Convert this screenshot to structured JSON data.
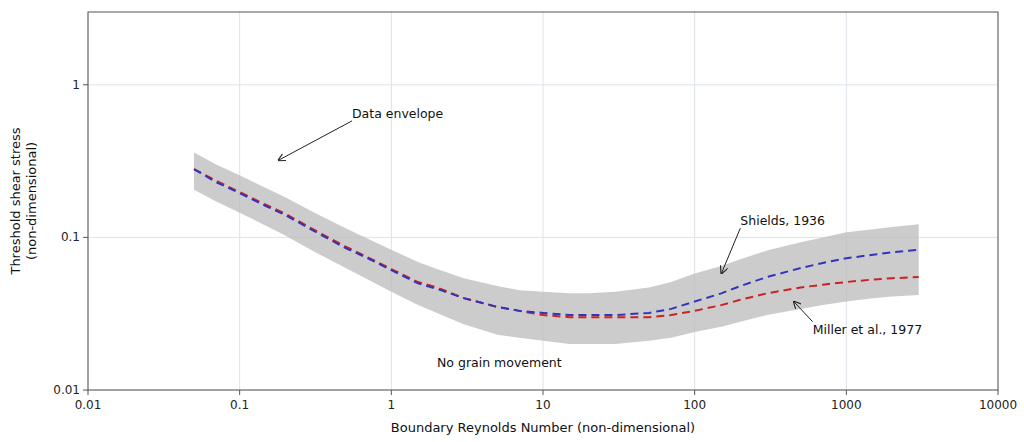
{
  "chart_data": {
    "type": "line",
    "log": true,
    "grid": true,
    "xlabel": "Boundary Reynolds Number (non-dimensional)",
    "ylabel": "Threshold shear stress\n(non-dimensional)",
    "xlim": [
      0.01,
      10000
    ],
    "ylim": [
      0.01,
      3.0
    ],
    "xticks": [
      0.01,
      0.1,
      1,
      10,
      100,
      1000,
      10000
    ],
    "yticks": [
      0.01,
      0.1,
      1
    ],
    "x": [
      0.05,
      0.07,
      0.1,
      0.15,
      0.2,
      0.3,
      0.5,
      0.7,
      1.0,
      1.5,
      2.0,
      3.0,
      5.0,
      7.0,
      10.0,
      15.0,
      20.0,
      30.0,
      50.0,
      70.0,
      100.0,
      150.0,
      200.0,
      300.0,
      500.0,
      700.0,
      1000.0,
      1500.0,
      2000.0,
      3000.0
    ],
    "series": [
      {
        "type": "band",
        "color": "#bbbbbb",
        "upper": [
          0.36,
          0.3,
          0.255,
          0.21,
          0.183,
          0.148,
          0.115,
          0.098,
          0.083,
          0.069,
          0.062,
          0.054,
          0.048,
          0.045,
          0.044,
          0.043,
          0.043,
          0.044,
          0.047,
          0.051,
          0.058,
          0.065,
          0.072,
          0.082,
          0.093,
          0.1,
          0.108,
          0.113,
          0.117,
          0.122
        ],
        "lower": [
          0.205,
          0.172,
          0.145,
          0.119,
          0.103,
          0.082,
          0.063,
          0.053,
          0.044,
          0.036,
          0.032,
          0.027,
          0.023,
          0.022,
          0.021,
          0.02,
          0.02,
          0.02,
          0.021,
          0.022,
          0.024,
          0.026,
          0.028,
          0.031,
          0.034,
          0.036,
          0.038,
          0.04,
          0.041,
          0.042
        ]
      },
      {
        "type": "line",
        "color": "#cc2222",
        "line_style": "dashed",
        "values": [
          0.28,
          0.235,
          0.198,
          0.163,
          0.143,
          0.114,
          0.087,
          0.074,
          0.062,
          0.051,
          0.047,
          0.04,
          0.035,
          0.033,
          0.031,
          0.03,
          0.03,
          0.03,
          0.03,
          0.031,
          0.033,
          0.036,
          0.039,
          0.043,
          0.047,
          0.049,
          0.051,
          0.053,
          0.054,
          0.055
        ]
      },
      {
        "type": "line",
        "color": "#3333bb",
        "line_style": "dashed",
        "values": [
          0.28,
          0.23,
          0.195,
          0.16,
          0.14,
          0.112,
          0.085,
          0.073,
          0.061,
          0.05,
          0.046,
          0.04,
          0.035,
          0.033,
          0.032,
          0.031,
          0.031,
          0.031,
          0.032,
          0.034,
          0.038,
          0.043,
          0.048,
          0.055,
          0.063,
          0.068,
          0.073,
          0.077,
          0.08,
          0.083
        ]
      }
    ],
    "annotations": [
      {
        "text": "Data envelope",
        "x": 0.55,
        "y": 0.58,
        "arrow_x": 0.18,
        "arrow_y": 0.32
      },
      {
        "text": "Shields, 1936",
        "x": 200.0,
        "y": 0.115,
        "arrow_x": 150.0,
        "arrow_y": 0.058
      },
      {
        "text": "Miller et al., 1977",
        "x": 600.0,
        "y": 0.028,
        "arrow_x": 450.0,
        "arrow_y": 0.038
      },
      {
        "text": "No grain movement",
        "x": 2.0,
        "y": 0.0135
      }
    ]
  }
}
